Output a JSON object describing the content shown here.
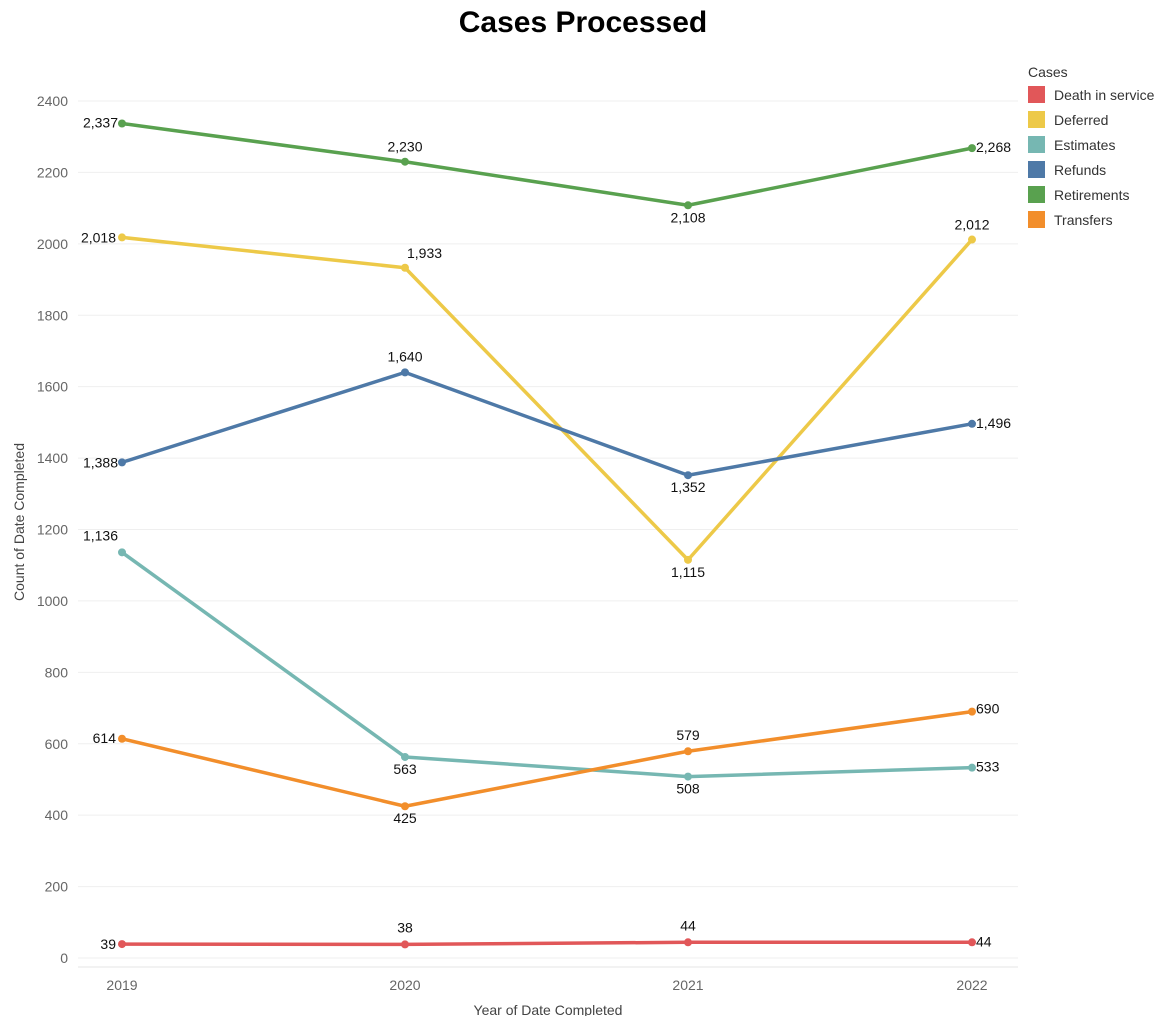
{
  "chart_data": {
    "type": "line",
    "title": "Cases Processed",
    "xlabel": "Year of Date Completed",
    "ylabel": "Count of Date Completed",
    "ylim": [
      0,
      2400
    ],
    "yticks": [
      0,
      200,
      400,
      600,
      800,
      1000,
      1200,
      1400,
      1600,
      1800,
      2000,
      2200,
      2400
    ],
    "categories": [
      "2019",
      "2020",
      "2021",
      "2022"
    ],
    "grid": "horizontal",
    "legend": {
      "title": "Cases",
      "position": "top-right"
    },
    "series": [
      {
        "name": "Death in service",
        "color": "#e15759",
        "values": [
          39,
          38,
          44,
          44
        ],
        "labels": [
          "39",
          "38",
          "44",
          "44"
        ]
      },
      {
        "name": "Deferred",
        "color": "#edc948",
        "values": [
          2018,
          1933,
          1115,
          2012
        ],
        "labels": [
          "2,018",
          "1,933",
          "1,115",
          "2,012"
        ]
      },
      {
        "name": "Estimates",
        "color": "#76b7b2",
        "values": [
          1136,
          563,
          508,
          533
        ],
        "labels": [
          "1,136",
          "563",
          "508",
          "533"
        ]
      },
      {
        "name": "Refunds",
        "color": "#4e79a7",
        "values": [
          1388,
          1640,
          1352,
          1496
        ],
        "labels": [
          "1,388",
          "1,640",
          "1,352",
          "1,496"
        ]
      },
      {
        "name": "Retirements",
        "color": "#59a14f",
        "values": [
          2337,
          2230,
          2108,
          2268
        ],
        "labels": [
          "2,337",
          "2,230",
          "2,108",
          "2,268"
        ]
      },
      {
        "name": "Transfers",
        "color": "#f28e2b",
        "values": [
          614,
          425,
          579,
          690
        ],
        "labels": [
          "614",
          "425",
          "579",
          "690"
        ]
      }
    ]
  }
}
